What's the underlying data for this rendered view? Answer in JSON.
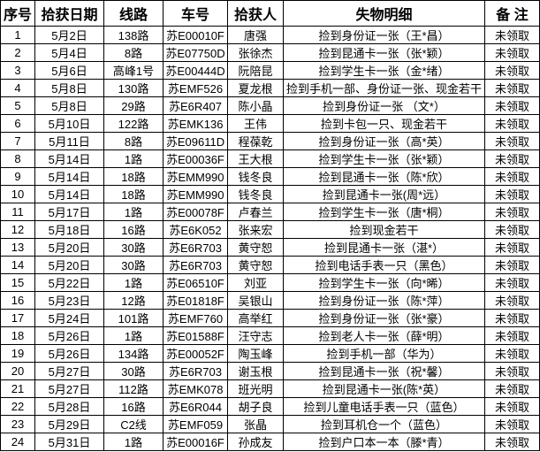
{
  "table": {
    "title_semantic": "公交车失物招领登记表",
    "columns": [
      {
        "key": "index",
        "label": "序号"
      },
      {
        "key": "date",
        "label": "拾获日期"
      },
      {
        "key": "route",
        "label": "线路"
      },
      {
        "key": "car",
        "label": "车号"
      },
      {
        "key": "finder",
        "label": "拾获人"
      },
      {
        "key": "detail",
        "label": "失物明细"
      },
      {
        "key": "remark",
        "label": "备  注"
      }
    ],
    "rows": [
      [
        "1",
        "5月2日",
        "138路",
        "苏E00010F",
        "唐强",
        "捡到身份证一张（王*昌）",
        "未领取"
      ],
      [
        "2",
        "5月4日",
        "8路",
        "苏E07750D",
        "张徐杰",
        "捡到昆通卡一张（张*颖）",
        "未领取"
      ],
      [
        "3",
        "5月6日",
        "高峰1号",
        "苏E00444D",
        "阮陪昆",
        "捡到学生卡一张（金*绪）",
        "未领取"
      ],
      [
        "4",
        "5月8日",
        "130路",
        "苏EMF526",
        "夏龙根",
        "捡到手机一部、身份证一张、现金若干",
        "未领取"
      ],
      [
        "5",
        "5月8日",
        "29路",
        "苏E6R407",
        "陈小晶",
        "捡到身份证一张 （文*）",
        "未领取"
      ],
      [
        "6",
        "5月10日",
        "122路",
        "苏EMK136",
        "王伟",
        "捡到卡包一只、现金若干",
        "未领取"
      ],
      [
        "7",
        "5月11日",
        "8路",
        "苏E09611D",
        "程葆乾",
        "捡到身份证一张（高*英）",
        "未领取"
      ],
      [
        "8",
        "5月14日",
        "1路",
        "苏E00036F",
        "王大根",
        "捡到学生卡一张（张*颖）",
        "未领取"
      ],
      [
        "9",
        "5月14日",
        "18路",
        "苏EMM990",
        "钱冬良",
        "捡到昆通卡一张（陈*欣）",
        "未领取"
      ],
      [
        "10",
        "5月14日",
        "18路",
        "苏EMM990",
        "钱冬良",
        "捡到昆通卡一张(周*远）",
        "未领取"
      ],
      [
        "11",
        "5月17日",
        "1路",
        "苏E00078F",
        "卢春兰",
        "捡到学生卡一张（唐*桐）",
        "未领取"
      ],
      [
        "12",
        "5月18日",
        "16路",
        "苏E6K052",
        "张来宏",
        "捡到现金若干",
        "未领取"
      ],
      [
        "13",
        "5月20日",
        "30路",
        "苏E6R703",
        "黄守恕",
        "捡到昆通卡一张（湛*）",
        "未领取"
      ],
      [
        "14",
        "5月20日",
        "30路",
        "苏E6R703",
        "黄守恕",
        "捡到电话手表一只（黑色）",
        "未领取"
      ],
      [
        "15",
        "5月22日",
        "1路",
        "苏E06510F",
        "刘亚",
        "捡到学生卡一张（向*晞）",
        "未领取"
      ],
      [
        "16",
        "5月23日",
        "12路",
        "苏E01818F",
        "吴银山",
        "捡到身份证一张（陈*萍）",
        "未领取"
      ],
      [
        "17",
        "5月24日",
        "101路",
        "苏EMF760",
        "高举红",
        "捡到身份证一张（张*豪）",
        "未领取"
      ],
      [
        "18",
        "5月26日",
        "1路",
        "苏E01588F",
        "汪守志",
        "捡到老人卡一张（薛*明）",
        "未领取"
      ],
      [
        "19",
        "5月26日",
        "134路",
        "苏E00052F",
        "陶玉峰",
        "捡到手机一部（华为）",
        "未领取"
      ],
      [
        "20",
        "5月27日",
        "30路",
        "苏E6R703",
        "谢玉根",
        "捡到昆通卡一张（祝*馨）",
        "未领取"
      ],
      [
        "21",
        "5月27日",
        "112路",
        "苏EMK078",
        "班光明",
        "捡到昆通卡一张(陈*英）",
        "未领取"
      ],
      [
        "22",
        "5月28日",
        "16路",
        "苏E6R044",
        "胡子良",
        "捡到儿童电话手表一只（蓝色）",
        "未领取"
      ],
      [
        "23",
        "5月29日",
        "C2线",
        "苏EMF059",
        "张晶",
        "捡到耳机仓一个（蓝色）",
        "未领取"
      ],
      [
        "24",
        "5月31日",
        "1路",
        "苏E00016F",
        "孙成友",
        "捡到户口本一本（滕*青）",
        "未领取"
      ]
    ]
  },
  "colors": {
    "border": "#000000",
    "text": "#000000",
    "background": "#ffffff"
  }
}
